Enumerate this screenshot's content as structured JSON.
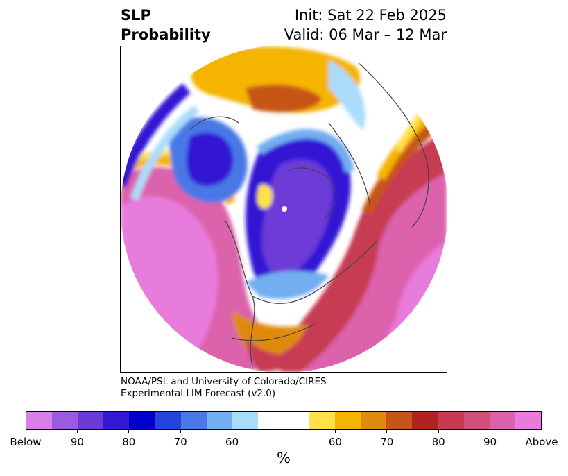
{
  "title": {
    "left_line1": "SLP",
    "left_line2": "Probability",
    "right_line1": "Init: Sat 22 Feb 2025",
    "right_line2": "Valid: 06 Mar – 12 Mar"
  },
  "credit": {
    "line1": "NOAA/PSL and University of Colorado/CIRES",
    "line2": "Experimental LIM Forecast (v2.0)"
  },
  "colorbar": {
    "colors": [
      "#d97fe9",
      "#9b5be0",
      "#6c3ad8",
      "#3318d4",
      "#0000cc",
      "#2343da",
      "#4a78e6",
      "#72aef0",
      "#aadcfb",
      "#ffffff",
      "#ffffff",
      "#ffe14a",
      "#f4b400",
      "#e08a10",
      "#c75418",
      "#b22222",
      "#c73a52",
      "#d0507a",
      "#dc62ab",
      "#e87bdc"
    ],
    "ticks": [
      {
        "label": "Below",
        "frac": 0.0
      },
      {
        "label": "90",
        "frac": 0.1
      },
      {
        "label": "80",
        "frac": 0.2
      },
      {
        "label": "70",
        "frac": 0.3
      },
      {
        "label": "60",
        "frac": 0.4
      },
      {
        "label": "60",
        "frac": 0.6
      },
      {
        "label": "70",
        "frac": 0.7
      },
      {
        "label": "80",
        "frac": 0.8
      },
      {
        "label": "90",
        "frac": 0.9
      },
      {
        "label": "Above",
        "frac": 1.0
      }
    ],
    "unit": "%"
  }
}
